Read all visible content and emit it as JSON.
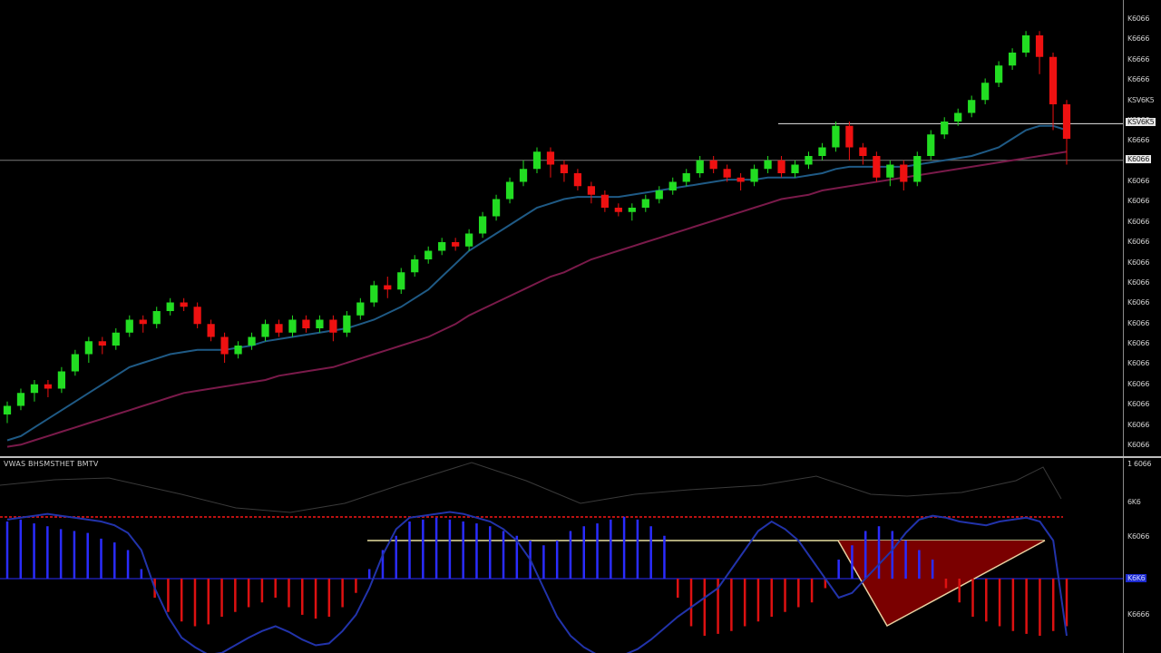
{
  "indicator": {
    "title": "VWAS BHSMSTHET BMTV"
  },
  "chart_data": [
    {
      "type": "candlestick",
      "name": "price",
      "axis_ticks": [
        "K6066",
        "K6666",
        "K6666",
        "K6666",
        "KSV6K5",
        "K6066",
        "K6666",
        "K6066",
        "K6066",
        "K6066",
        "K6066",
        "K6066",
        "K6066",
        "K6066",
        "K6066",
        "K6066",
        "K6066",
        "K6066",
        "K6066",
        "K6066",
        "K6066",
        "K6066"
      ],
      "ylim": [
        0,
        100
      ],
      "horizontal_lines": [
        {
          "y": 75.5
        },
        {
          "y": 67
        }
      ],
      "colors": {
        "up": "#22dd22",
        "down": "#ee1111",
        "ma_fast": "#1f5a85",
        "ma_slow": "#7a1a4a"
      },
      "candles": [
        {
          "o": 8,
          "c": 10,
          "h": 11,
          "l": 6
        },
        {
          "o": 10,
          "c": 13,
          "h": 14,
          "l": 9
        },
        {
          "o": 13,
          "c": 15,
          "h": 16,
          "l": 11
        },
        {
          "o": 15,
          "c": 14,
          "h": 16,
          "l": 12
        },
        {
          "o": 14,
          "c": 18,
          "h": 19,
          "l": 13
        },
        {
          "o": 18,
          "c": 22,
          "h": 23,
          "l": 17
        },
        {
          "o": 22,
          "c": 25,
          "h": 26,
          "l": 20
        },
        {
          "o": 25,
          "c": 24,
          "h": 26,
          "l": 22
        },
        {
          "o": 24,
          "c": 27,
          "h": 28,
          "l": 23
        },
        {
          "o": 27,
          "c": 30,
          "h": 31,
          "l": 26
        },
        {
          "o": 30,
          "c": 29,
          "h": 31,
          "l": 27
        },
        {
          "o": 29,
          "c": 32,
          "h": 33,
          "l": 28
        },
        {
          "o": 32,
          "c": 34,
          "h": 35,
          "l": 31
        },
        {
          "o": 34,
          "c": 33,
          "h": 35,
          "l": 32
        },
        {
          "o": 33,
          "c": 29,
          "h": 34,
          "l": 28
        },
        {
          "o": 29,
          "c": 26,
          "h": 30,
          "l": 25
        },
        {
          "o": 26,
          "c": 22,
          "h": 27,
          "l": 20
        },
        {
          "o": 22,
          "c": 24,
          "h": 25,
          "l": 21
        },
        {
          "o": 24,
          "c": 26,
          "h": 27,
          "l": 23
        },
        {
          "o": 26,
          "c": 29,
          "h": 30,
          "l": 25
        },
        {
          "o": 29,
          "c": 27,
          "h": 30,
          "l": 26
        },
        {
          "o": 27,
          "c": 30,
          "h": 31,
          "l": 26
        },
        {
          "o": 30,
          "c": 28,
          "h": 31,
          "l": 27
        },
        {
          "o": 28,
          "c": 30,
          "h": 31,
          "l": 27
        },
        {
          "o": 30,
          "c": 27,
          "h": 31,
          "l": 25
        },
        {
          "o": 27,
          "c": 31,
          "h": 32,
          "l": 26
        },
        {
          "o": 31,
          "c": 34,
          "h": 35,
          "l": 30
        },
        {
          "o": 34,
          "c": 38,
          "h": 39,
          "l": 33
        },
        {
          "o": 38,
          "c": 37,
          "h": 40,
          "l": 35
        },
        {
          "o": 37,
          "c": 41,
          "h": 42,
          "l": 36
        },
        {
          "o": 41,
          "c": 44,
          "h": 45,
          "l": 40
        },
        {
          "o": 44,
          "c": 46,
          "h": 47,
          "l": 43
        },
        {
          "o": 46,
          "c": 48,
          "h": 49,
          "l": 45
        },
        {
          "o": 48,
          "c": 47,
          "h": 49,
          "l": 46
        },
        {
          "o": 47,
          "c": 50,
          "h": 51,
          "l": 46
        },
        {
          "o": 50,
          "c": 54,
          "h": 55,
          "l": 49
        },
        {
          "o": 54,
          "c": 58,
          "h": 59,
          "l": 53
        },
        {
          "o": 58,
          "c": 62,
          "h": 63,
          "l": 57
        },
        {
          "o": 62,
          "c": 65,
          "h": 67,
          "l": 61
        },
        {
          "o": 65,
          "c": 69,
          "h": 70,
          "l": 64
        },
        {
          "o": 69,
          "c": 66,
          "h": 70,
          "l": 63
        },
        {
          "o": 66,
          "c": 64,
          "h": 67,
          "l": 62
        },
        {
          "o": 64,
          "c": 61,
          "h": 65,
          "l": 60
        },
        {
          "o": 61,
          "c": 59,
          "h": 62,
          "l": 57
        },
        {
          "o": 59,
          "c": 56,
          "h": 60,
          "l": 55
        },
        {
          "o": 56,
          "c": 55,
          "h": 57,
          "l": 54
        },
        {
          "o": 55,
          "c": 56,
          "h": 57,
          "l": 53
        },
        {
          "o": 56,
          "c": 58,
          "h": 59,
          "l": 55
        },
        {
          "o": 58,
          "c": 60,
          "h": 61,
          "l": 57
        },
        {
          "o": 60,
          "c": 62,
          "h": 63,
          "l": 59
        },
        {
          "o": 62,
          "c": 64,
          "h": 65,
          "l": 61
        },
        {
          "o": 64,
          "c": 67,
          "h": 68,
          "l": 63
        },
        {
          "o": 67,
          "c": 65,
          "h": 68,
          "l": 64
        },
        {
          "o": 65,
          "c": 63,
          "h": 66,
          "l": 62
        },
        {
          "o": 63,
          "c": 62,
          "h": 64,
          "l": 60
        },
        {
          "o": 62,
          "c": 65,
          "h": 66,
          "l": 61
        },
        {
          "o": 65,
          "c": 67,
          "h": 68,
          "l": 64
        },
        {
          "o": 67,
          "c": 64,
          "h": 68,
          "l": 63
        },
        {
          "o": 64,
          "c": 66,
          "h": 67,
          "l": 63
        },
        {
          "o": 66,
          "c": 68,
          "h": 69,
          "l": 65
        },
        {
          "o": 68,
          "c": 70,
          "h": 71,
          "l": 67
        },
        {
          "o": 70,
          "c": 75,
          "h": 76,
          "l": 69
        },
        {
          "o": 75,
          "c": 70,
          "h": 76,
          "l": 67
        },
        {
          "o": 70,
          "c": 68,
          "h": 71,
          "l": 66
        },
        {
          "o": 68,
          "c": 63,
          "h": 69,
          "l": 62
        },
        {
          "o": 63,
          "c": 66,
          "h": 67,
          "l": 61
        },
        {
          "o": 66,
          "c": 62,
          "h": 67,
          "l": 60
        },
        {
          "o": 62,
          "c": 68,
          "h": 69,
          "l": 61
        },
        {
          "o": 68,
          "c": 73,
          "h": 74,
          "l": 67
        },
        {
          "o": 73,
          "c": 76,
          "h": 77,
          "l": 72
        },
        {
          "o": 76,
          "c": 78,
          "h": 79,
          "l": 75
        },
        {
          "o": 78,
          "c": 81,
          "h": 82,
          "l": 77
        },
        {
          "o": 81,
          "c": 85,
          "h": 86,
          "l": 80
        },
        {
          "o": 85,
          "c": 89,
          "h": 90,
          "l": 84
        },
        {
          "o": 89,
          "c": 92,
          "h": 93,
          "l": 88
        },
        {
          "o": 92,
          "c": 96,
          "h": 97,
          "l": 91
        },
        {
          "o": 96,
          "c": 91,
          "h": 97,
          "l": 87
        },
        {
          "o": 91,
          "c": 80,
          "h": 92,
          "l": 74
        },
        {
          "o": 80,
          "c": 72,
          "h": 81,
          "l": 66
        }
      ],
      "ma_fast": [
        2,
        3,
        5,
        7,
        9,
        11,
        13,
        15,
        17,
        19,
        20,
        21,
        22,
        22.5,
        23,
        23,
        23,
        23.5,
        24,
        25,
        25.5,
        26,
        26.5,
        27,
        27.5,
        28,
        29,
        30,
        31.5,
        33,
        35,
        37,
        40,
        43,
        46,
        48,
        50,
        52,
        54,
        56,
        57,
        58,
        58.5,
        58.5,
        58.5,
        58.5,
        59,
        59.5,
        60,
        60.5,
        61,
        61.5,
        62,
        62.5,
        62.5,
        62.5,
        63,
        63,
        63,
        63.5,
        64,
        65,
        65.5,
        65.5,
        65.5,
        65.5,
        65.5,
        66,
        66.5,
        67,
        67.5,
        68,
        69,
        70,
        72,
        74,
        75,
        75,
        74
      ],
      "ma_slow": [
        0.5,
        1,
        2,
        3,
        4,
        5,
        6,
        7,
        8,
        9,
        10,
        11,
        12,
        13,
        13.5,
        14,
        14.5,
        15,
        15.5,
        16,
        17,
        17.5,
        18,
        18.5,
        19,
        20,
        21,
        22,
        23,
        24,
        25,
        26,
        27.5,
        29,
        31,
        32.5,
        34,
        35.5,
        37,
        38.5,
        40,
        41,
        42.5,
        44,
        45,
        46,
        47,
        48,
        49,
        50,
        51,
        52,
        53,
        54,
        55,
        56,
        57,
        58,
        58.5,
        59,
        60,
        60.5,
        61,
        61.5,
        62,
        62.5,
        63,
        63.5,
        64,
        64.5,
        65,
        65.5,
        66,
        66.5,
        67,
        67.5,
        68,
        68.5,
        69
      ],
      "xlabel": "",
      "ylabel": ""
    },
    {
      "type": "bar",
      "name": "oscillator",
      "axis_ticks": [
        "1 6066",
        "6K6",
        "K6066",
        "K6K6",
        "K6666"
      ],
      "ylim": [
        -100,
        100
      ],
      "colors": {
        "positive": "#2a2cff",
        "negative": "#dd1111",
        "envelope": "#2233aa",
        "signal_line": "#bb1111",
        "upper_line": "#888888"
      },
      "values": [
        60,
        62,
        58,
        55,
        52,
        50,
        48,
        42,
        38,
        30,
        10,
        -20,
        -35,
        -45,
        -50,
        -48,
        -40,
        -35,
        -30,
        -25,
        -20,
        -30,
        -38,
        -42,
        -40,
        -30,
        -15,
        10,
        30,
        45,
        60,
        62,
        64,
        62,
        60,
        58,
        55,
        50,
        45,
        40,
        35,
        40,
        50,
        55,
        58,
        62,
        65,
        62,
        55,
        45,
        -20,
        -50,
        -60,
        -58,
        -55,
        -50,
        -45,
        -40,
        -35,
        -30,
        -25,
        -10,
        20,
        35,
        50,
        55,
        50,
        40,
        30,
        20,
        -10,
        -25,
        -40,
        -45,
        -50,
        -55,
        -58,
        -60,
        -55,
        -50
      ],
      "envelope": [
        62,
        64,
        66,
        68,
        66,
        64,
        62,
        60,
        56,
        48,
        30,
        -10,
        -40,
        -62,
        -72,
        -80,
        -78,
        -70,
        -62,
        -55,
        -50,
        -56,
        -64,
        -70,
        -68,
        -55,
        -38,
        -10,
        25,
        52,
        64,
        66,
        68,
        70,
        68,
        64,
        60,
        52,
        40,
        20,
        -10,
        -40,
        -60,
        -72,
        -80,
        -82,
        -80,
        -74,
        -64,
        -52,
        -40,
        -30,
        -20,
        -10,
        10,
        30,
        50,
        60,
        52,
        40,
        20,
        0,
        -20,
        -15,
        0,
        15,
        30,
        48,
        62,
        66,
        64,
        60,
        58,
        56,
        60,
        62,
        64,
        60,
        40,
        -60
      ],
      "xlabel": "",
      "ylabel": ""
    }
  ]
}
